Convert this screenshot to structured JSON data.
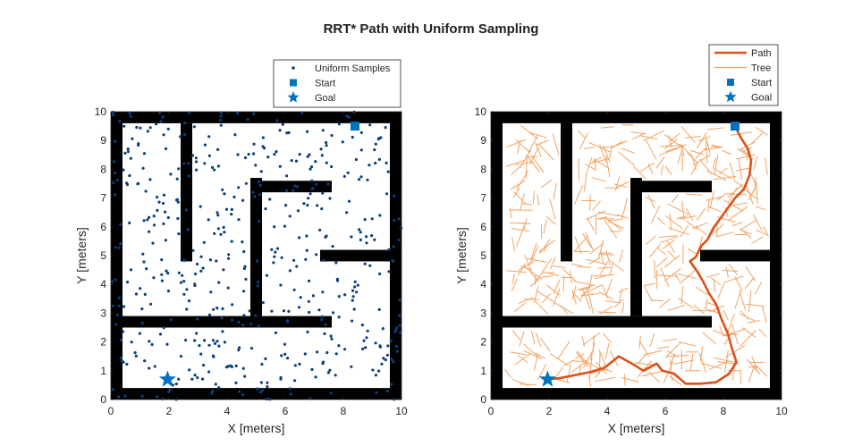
{
  "figure": {
    "title": "RRT* Path with Uniform Sampling"
  },
  "chart_data": [
    {
      "type": "scatter",
      "title": "",
      "xlabel": "X [meters]",
      "ylabel": "Y [meters]",
      "xlim": [
        0,
        10
      ],
      "ylim": [
        0,
        10
      ],
      "xticks": [
        "0",
        "2",
        "4",
        "6",
        "8",
        "10"
      ],
      "yticks": [
        "0",
        "1",
        "2",
        "3",
        "4",
        "5",
        "6",
        "7",
        "8",
        "9",
        "10"
      ],
      "grid": false,
      "legend_position": "top-right",
      "legend": [
        "Uniform Samples",
        "Start",
        "Goal"
      ],
      "colors": {
        "samples": "#0d3f7a",
        "start": "#0072bd",
        "goal": "#0072bd",
        "walls": "#000000"
      },
      "obstacles": [
        [
          0,
          0,
          0.4,
          10
        ],
        [
          9.6,
          0,
          0.4,
          10
        ],
        [
          0,
          0,
          10,
          0.4
        ],
        [
          0,
          9.6,
          10,
          0.4
        ],
        [
          0.4,
          2.5,
          7.2,
          0.4
        ],
        [
          2.4,
          4.8,
          0.4,
          4.8
        ],
        [
          4.8,
          2.9,
          0.4,
          4.8
        ],
        [
          5.2,
          7.2,
          2.4,
          0.4
        ],
        [
          7.2,
          4.8,
          2.4,
          0.4
        ]
      ],
      "samples_count": 520,
      "samples_seed": 7,
      "start": [
        8.4,
        9.5
      ],
      "goal": [
        1.95,
        0.7
      ]
    },
    {
      "type": "line",
      "title": "",
      "xlabel": "X [meters]",
      "ylabel": "Y [meters]",
      "xlim": [
        0,
        10
      ],
      "ylim": [
        0,
        10
      ],
      "xticks": [
        "0",
        "2",
        "4",
        "6",
        "8",
        "10"
      ],
      "yticks": [
        "0",
        "1",
        "2",
        "3",
        "4",
        "5",
        "6",
        "7",
        "8",
        "9",
        "10"
      ],
      "grid": false,
      "legend_position": "top-right",
      "legend": [
        "Path",
        "Tree",
        "Start",
        "Goal"
      ],
      "colors": {
        "path": "#d95319",
        "tree": "#f4a261",
        "start": "#0072bd",
        "goal": "#0072bd",
        "walls": "#000000"
      },
      "obstacles": [
        [
          0,
          0,
          0.4,
          10
        ],
        [
          9.6,
          0,
          0.4,
          10
        ],
        [
          0,
          0,
          10,
          0.4
        ],
        [
          0,
          9.6,
          10,
          0.4
        ],
        [
          0.4,
          2.5,
          7.2,
          0.4
        ],
        [
          2.4,
          4.8,
          0.4,
          4.8
        ],
        [
          4.8,
          2.9,
          0.4,
          4.8
        ],
        [
          5.2,
          7.2,
          2.4,
          0.4
        ],
        [
          7.2,
          4.8,
          2.4,
          0.4
        ]
      ],
      "path": [
        [
          8.4,
          9.5
        ],
        [
          8.6,
          9.1
        ],
        [
          8.85,
          8.7
        ],
        [
          8.95,
          8.3
        ],
        [
          8.9,
          7.8
        ],
        [
          8.7,
          7.3
        ],
        [
          8.4,
          7.0
        ],
        [
          8.15,
          6.65
        ],
        [
          7.9,
          6.3
        ],
        [
          7.65,
          5.95
        ],
        [
          7.45,
          5.55
        ],
        [
          7.25,
          5.35
        ],
        [
          7.05,
          4.95
        ],
        [
          6.85,
          4.8
        ],
        [
          7.1,
          4.45
        ],
        [
          7.3,
          4.1
        ],
        [
          7.5,
          3.7
        ],
        [
          7.75,
          3.3
        ],
        [
          7.95,
          2.75
        ],
        [
          8.15,
          2.3
        ],
        [
          8.3,
          1.75
        ],
        [
          8.45,
          1.3
        ],
        [
          8.2,
          0.9
        ],
        [
          7.75,
          0.6
        ],
        [
          7.2,
          0.55
        ],
        [
          6.7,
          0.55
        ],
        [
          6.3,
          0.9
        ],
        [
          5.9,
          1.0
        ],
        [
          5.7,
          1.25
        ],
        [
          5.25,
          1.0
        ],
        [
          4.85,
          1.25
        ],
        [
          4.4,
          1.5
        ],
        [
          3.9,
          1.1
        ],
        [
          3.4,
          0.95
        ],
        [
          2.9,
          0.85
        ],
        [
          2.4,
          0.75
        ],
        [
          1.95,
          0.7
        ]
      ],
      "tree_count": 440,
      "tree_seed": 11,
      "start": [
        8.4,
        9.5
      ],
      "goal": [
        1.95,
        0.7
      ]
    }
  ]
}
